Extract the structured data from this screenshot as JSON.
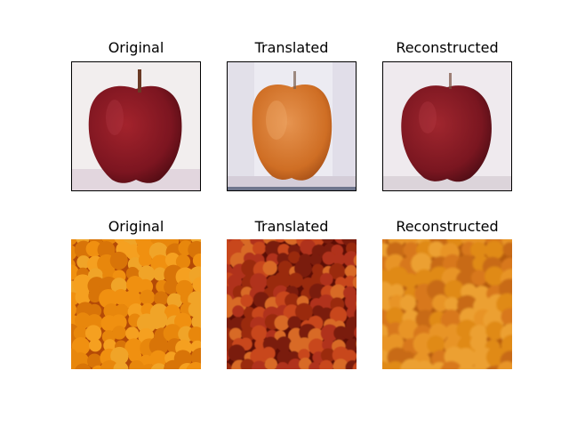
{
  "figure": {
    "rows": [
      {
        "subject": "apple",
        "panels": [
          {
            "title": "Original",
            "image": "red-apple-on-white-background"
          },
          {
            "title": "Translated",
            "image": "orange-colored-apple-generated"
          },
          {
            "title": "Reconstructed",
            "image": "red-apple-reconstructed"
          }
        ]
      },
      {
        "subject": "oranges",
        "panels": [
          {
            "title": "Original",
            "image": "pile-of-oranges"
          },
          {
            "title": "Translated",
            "image": "reddish-apple-textured-pile-generated"
          },
          {
            "title": "Reconstructed",
            "image": "blurry-orange-pile-reconstructed"
          }
        ]
      }
    ]
  },
  "colors": {
    "apple_red": "#8b1a22",
    "apple_translated": "#d8782c",
    "orange": "#e8870c",
    "translated_red": "#9a2a10"
  }
}
